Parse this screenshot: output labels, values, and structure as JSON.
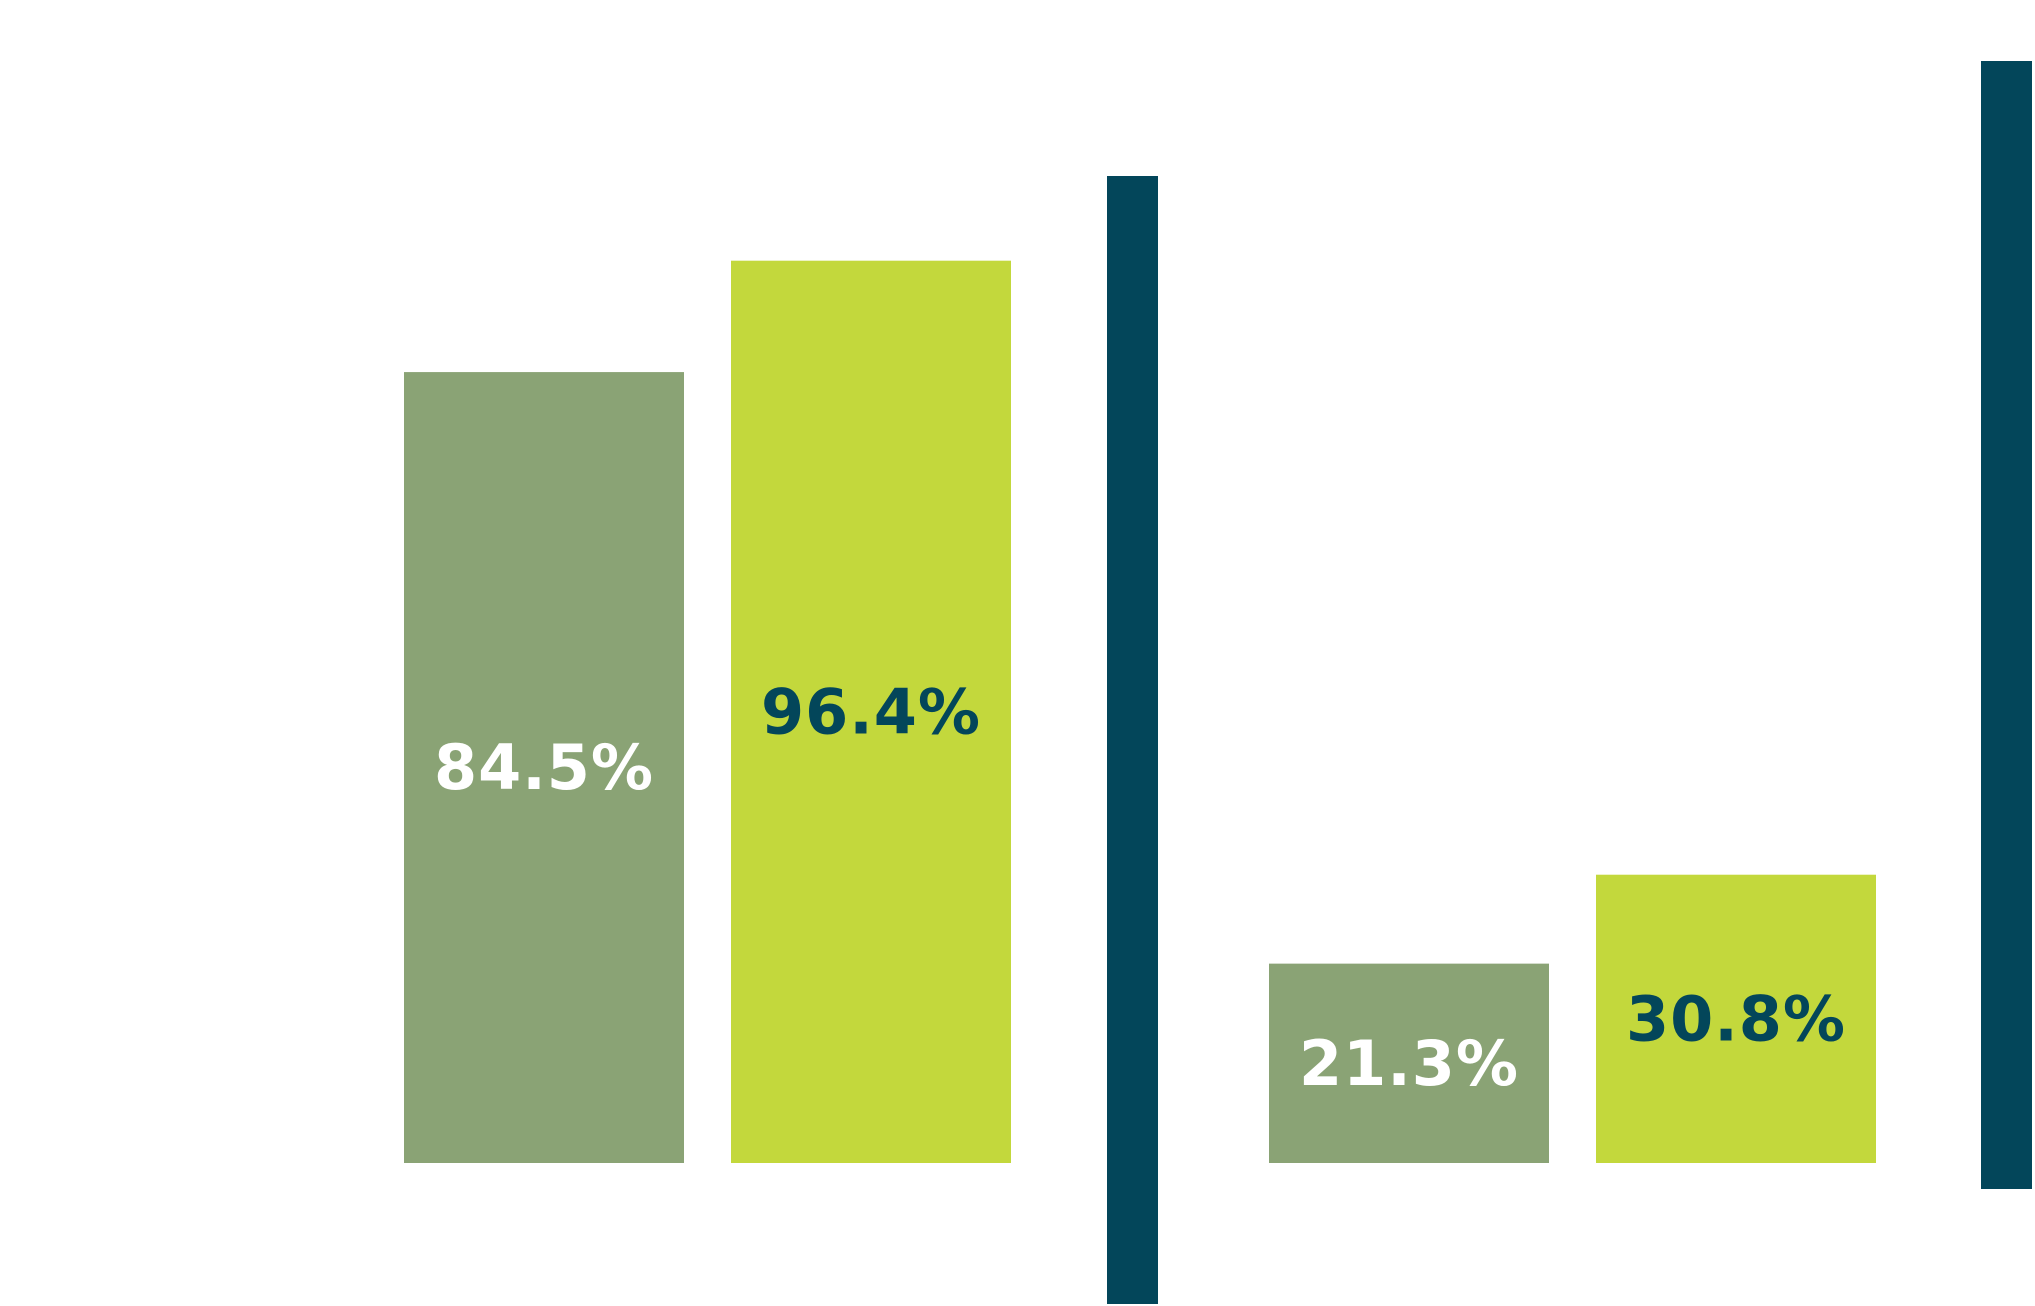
{
  "chart_data": {
    "type": "bar",
    "categories": [
      "",
      ""
    ],
    "series": [
      {
        "values": [
          84.5,
          21.3
        ],
        "labels": [
          "84.5%",
          "21.3%"
        ]
      },
      {
        "values": [
          96.4,
          30.8
        ],
        "labels": [
          "96.4%",
          "30.8%"
        ]
      }
    ],
    "unit": "%",
    "ylim": [
      0,
      100
    ],
    "grid": false,
    "legend": "none",
    "colors": {
      "series": [
        "#8aa375",
        "#c3d83c"
      ],
      "label_text": [
        "#ffffff",
        "#03465a"
      ],
      "divider": "#03465a",
      "background": "#ffffff"
    }
  }
}
